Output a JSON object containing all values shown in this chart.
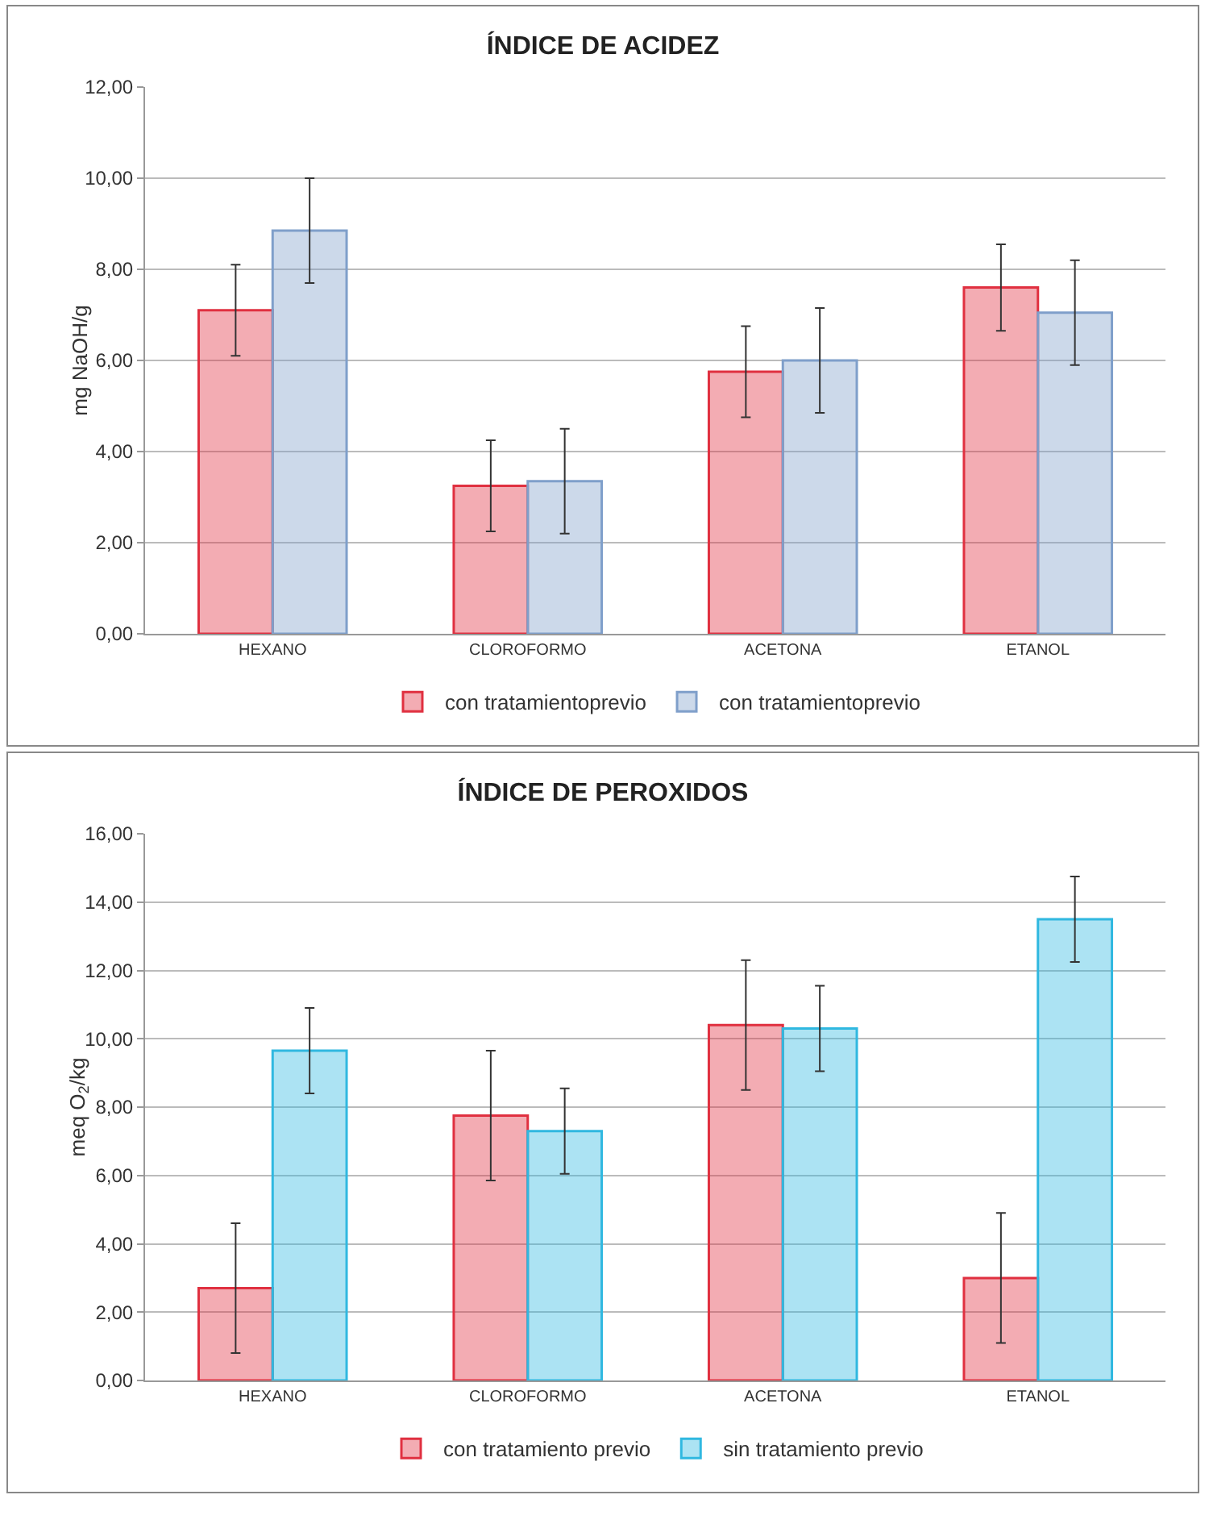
{
  "chart_data": [
    {
      "type": "bar",
      "title": "ÍNDICE DE ACIDEZ",
      "ylabel": "mg NaOH/g",
      "categories": [
        "HEXANO",
        "CLOROFORMO",
        "ACETONA",
        "ETANOL"
      ],
      "series": [
        {
          "name": "con tratamientoprevio",
          "color": "#e03040",
          "values": [
            7.1,
            3.25,
            5.75,
            7.6
          ],
          "errors": [
            1.0,
            1.0,
            1.0,
            0.95
          ]
        },
        {
          "name": "con tratamientoprevio",
          "color": "#7f9fca",
          "values": [
            8.85,
            3.35,
            6.0,
            7.05
          ],
          "errors": [
            1.15,
            1.15,
            1.15,
            1.15
          ]
        }
      ],
      "ylim": [
        0,
        12
      ],
      "yticks": [
        {
          "value": 0,
          "label": "0,00"
        },
        {
          "value": 2,
          "label": "2,00"
        },
        {
          "value": 4,
          "label": "4,00"
        },
        {
          "value": 6,
          "label": "6,00"
        },
        {
          "value": 8,
          "label": "8,00"
        },
        {
          "value": 10,
          "label": "10,00"
        },
        {
          "value": 12,
          "label": "12,00"
        }
      ],
      "grid": "y",
      "legend": "bottom"
    },
    {
      "type": "bar",
      "title": "ÍNDICE DE PEROXIDOS",
      "ylabel": "meq O$_{2}$/kg",
      "categories": [
        "HEXANO",
        "CLOROFORMO",
        "ACETONA",
        "ETANOL"
      ],
      "series": [
        {
          "name": "con tratamiento previo",
          "color": "#e03040",
          "values": [
            2.7,
            7.75,
            10.4,
            3.0
          ],
          "errors": [
            1.9,
            1.9,
            1.9,
            1.9
          ]
        },
        {
          "name": "sin tratamiento previo",
          "color": "#30b8e0",
          "values": [
            9.65,
            7.3,
            10.3,
            13.5
          ],
          "errors": [
            1.25,
            1.25,
            1.25,
            1.25
          ]
        }
      ],
      "ylim": [
        0,
        16
      ],
      "yticks": [
        {
          "value": 0,
          "label": "0,00"
        },
        {
          "value": 2,
          "label": "2,00"
        },
        {
          "value": 4,
          "label": "4,00"
        },
        {
          "value": 6,
          "label": "6,00"
        },
        {
          "value": 8,
          "label": "8,00"
        },
        {
          "value": 10,
          "label": "10,00"
        },
        {
          "value": 12,
          "label": "12,00"
        },
        {
          "value": 14,
          "label": "14,00"
        },
        {
          "value": 16,
          "label": "16,00"
        }
      ],
      "grid": "y",
      "legend": "bottom"
    }
  ]
}
